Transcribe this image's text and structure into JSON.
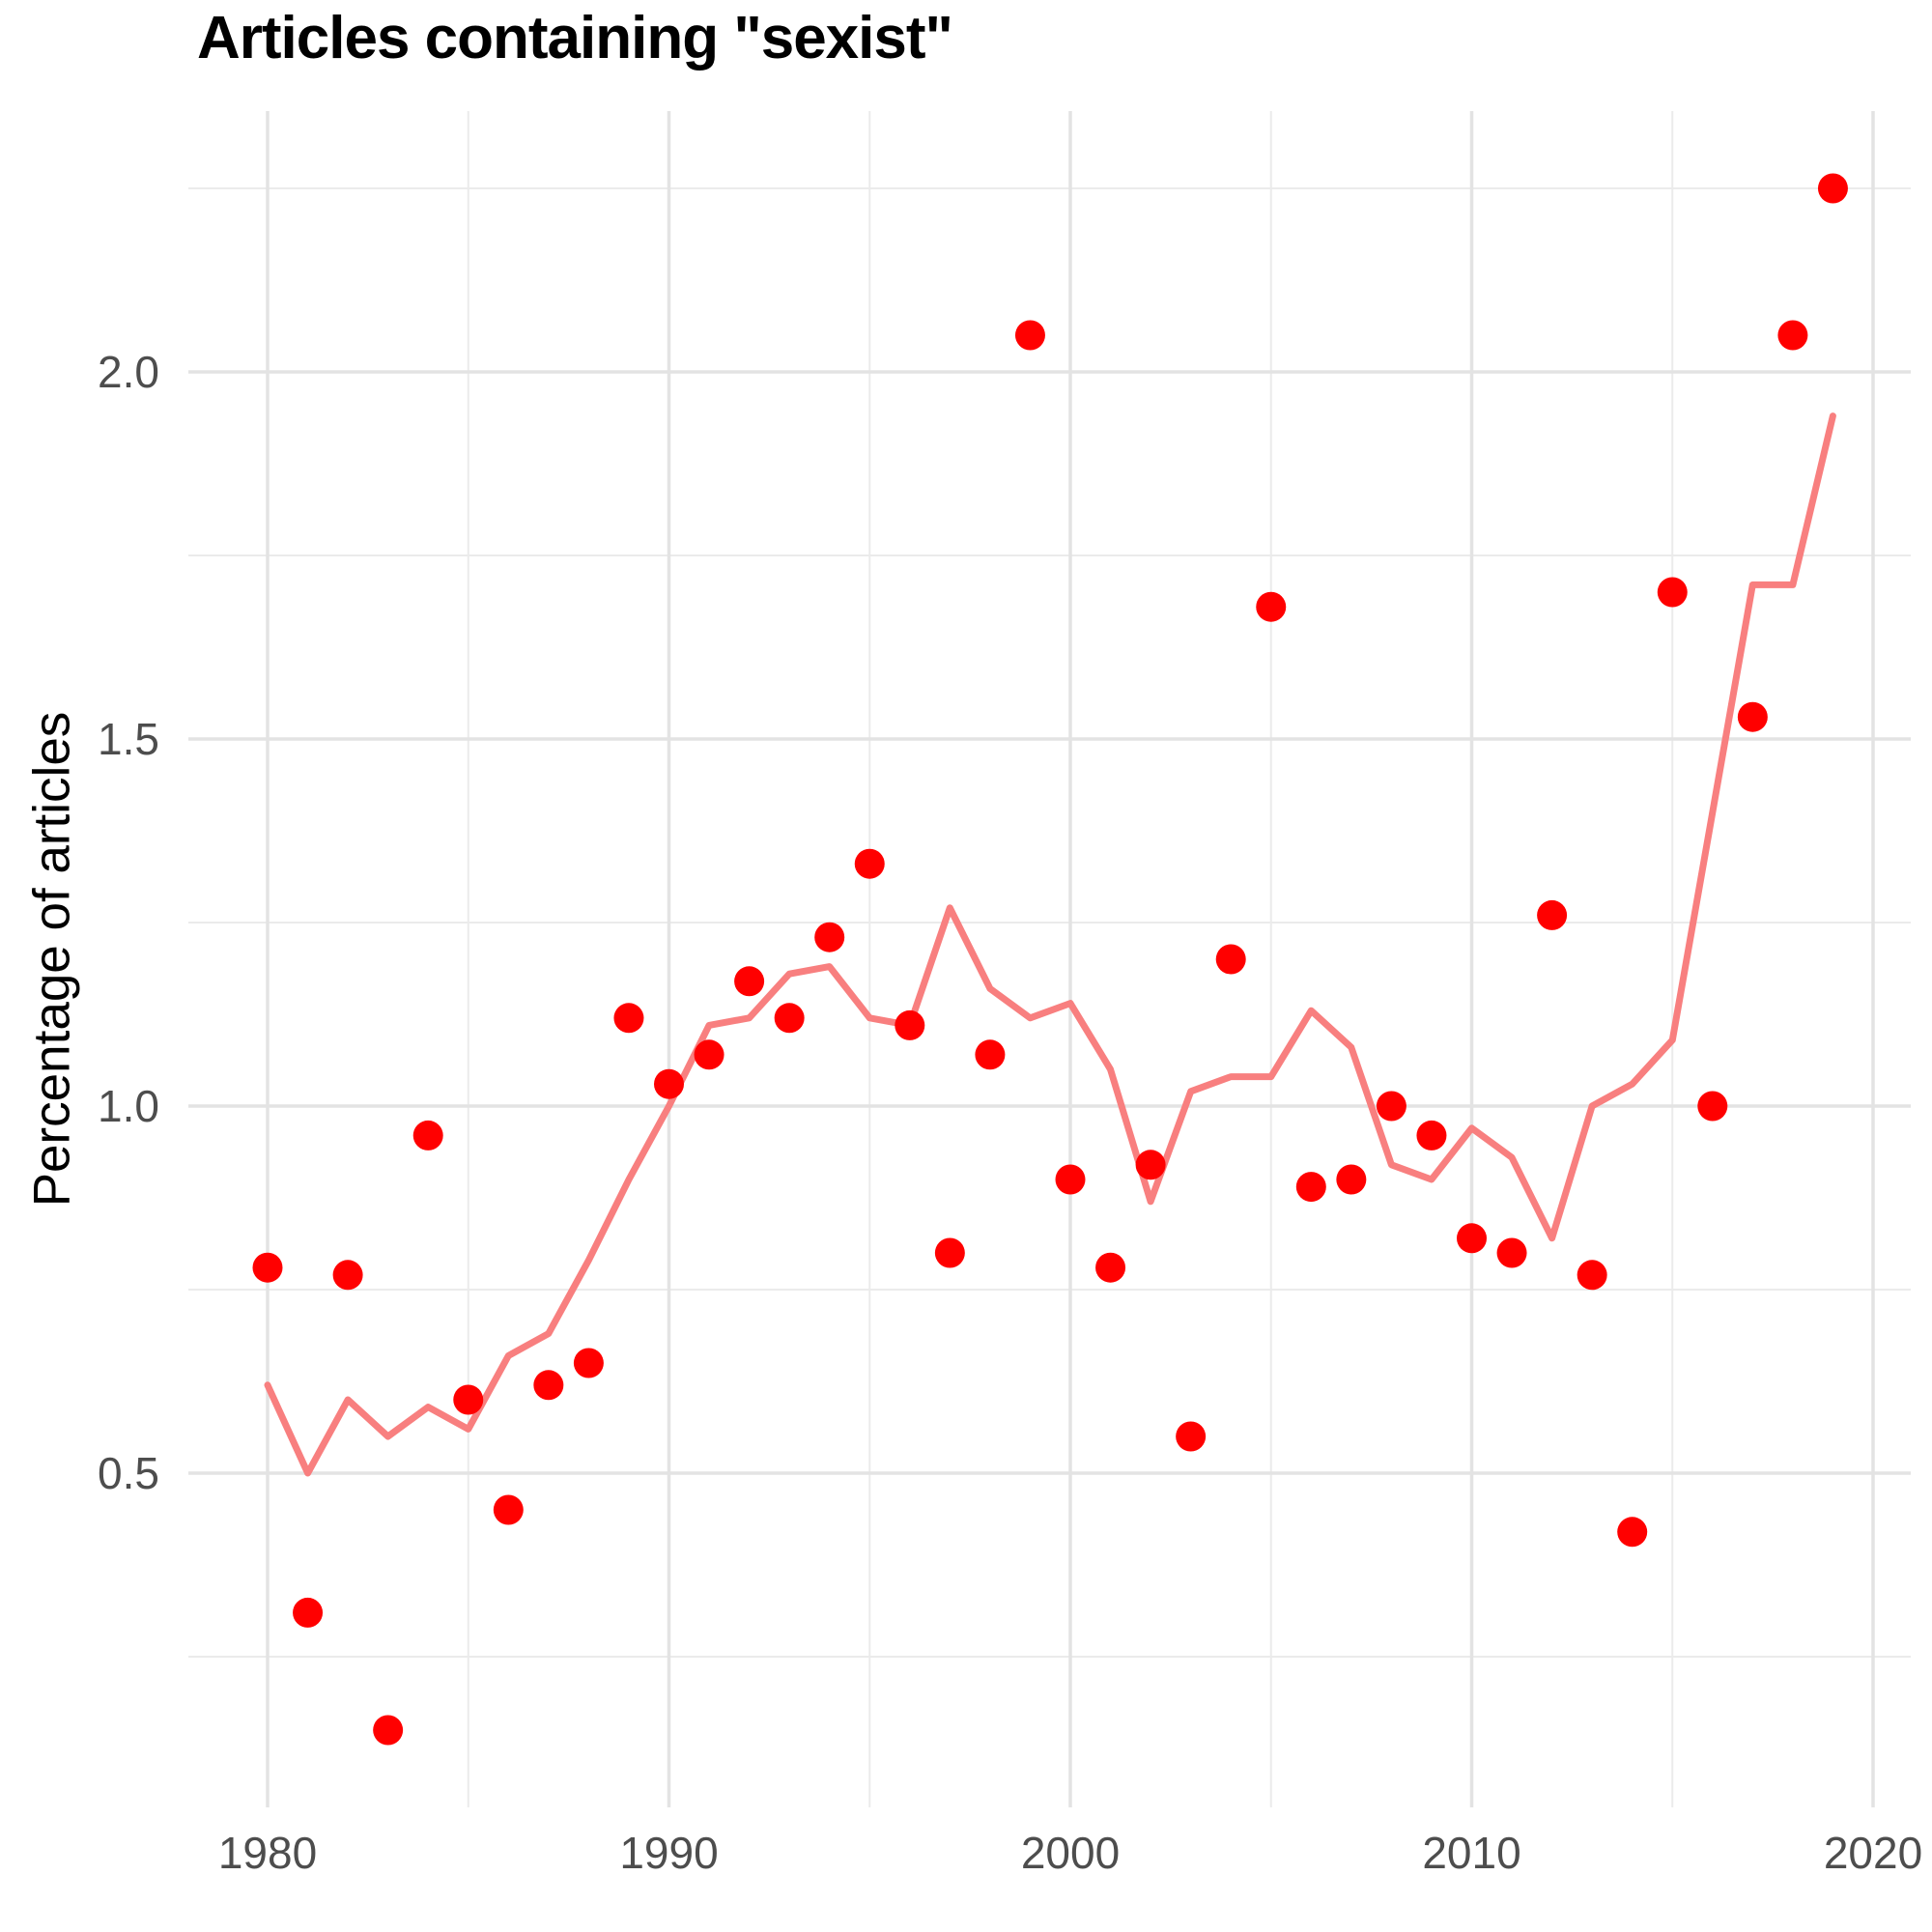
{
  "chart": {
    "title": "Articles containing \"sexist\"",
    "ylabel": "Percentage of articles",
    "colors": {
      "point": "#ff0000",
      "trend_line": "#f87f7f",
      "grid_major": "#e3e3e3",
      "grid_minor": "#ebebeb",
      "tick_text": "#4d4d4d",
      "title_text": "#000000",
      "background": "#ffffff"
    }
  },
  "chart_data": {
    "type": "scatter",
    "title": "Articles containing \"sexist\"",
    "xlabel": "",
    "ylabel": "Percentage of articles",
    "grid": true,
    "legend": false,
    "xlim": [
      1978.05,
      2020.95
    ],
    "ylim": [
      0.045,
      2.355
    ],
    "x_ticks_major": [
      1980,
      1990,
      2000,
      2010,
      2020
    ],
    "x_ticks_minor": [
      1985,
      1995,
      2005,
      2015
    ],
    "y_ticks_major": [
      0.5,
      1.0,
      1.5,
      2.0
    ],
    "y_ticks_minor": [
      0.25,
      0.75,
      1.25,
      1.75,
      2.25
    ],
    "x": [
      1980,
      1981,
      1982,
      1983,
      1984,
      1985,
      1986,
      1987,
      1988,
      1989,
      1990,
      1991,
      1992,
      1993,
      1994,
      1995,
      1996,
      1997,
      1998,
      1999,
      2000,
      2001,
      2002,
      2003,
      2004,
      2005,
      2006,
      2007,
      2008,
      2009,
      2010,
      2011,
      2012,
      2013,
      2014,
      2015,
      2016,
      2017,
      2018,
      2019
    ],
    "series": [
      {
        "name": "yearly-percentage-points",
        "type": "scatter",
        "values": [
          0.78,
          0.31,
          0.77,
          0.15,
          0.96,
          0.6,
          0.45,
          0.62,
          0.65,
          1.12,
          1.03,
          1.07,
          1.17,
          1.12,
          1.23,
          1.33,
          1.11,
          0.8,
          1.07,
          2.05,
          0.9,
          0.78,
          0.92,
          0.55,
          1.2,
          1.68,
          0.89,
          0.9,
          1.0,
          0.96,
          0.82,
          0.8,
          1.26,
          0.77,
          0.42,
          1.7,
          1.0,
          1.53,
          2.05,
          2.25
        ]
      },
      {
        "name": "trend-line",
        "type": "line",
        "values": [
          0.62,
          0.5,
          0.6,
          0.55,
          0.59,
          0.56,
          0.66,
          0.69,
          0.79,
          0.9,
          1.0,
          1.11,
          1.12,
          1.18,
          1.19,
          1.12,
          1.11,
          1.27,
          1.16,
          1.12,
          1.14,
          1.05,
          0.87,
          1.02,
          1.04,
          1.04,
          1.13,
          1.08,
          0.92,
          0.9,
          0.97,
          0.93,
          0.82,
          1.0,
          1.03,
          1.09,
          1.4,
          1.71,
          1.71,
          1.94
        ]
      }
    ]
  }
}
